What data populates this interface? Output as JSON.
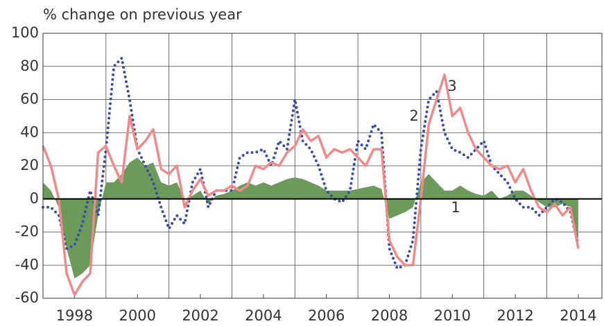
{
  "chart_data": {
    "type": "line",
    "title": "% change on previous year",
    "x": [
      1997,
      1997.25,
      1997.5,
      1997.75,
      1998,
      1998.25,
      1998.5,
      1998.75,
      1999,
      1999.25,
      1999.5,
      1999.75,
      2000,
      2000.25,
      2000.5,
      2000.75,
      2001,
      2001.25,
      2001.5,
      2001.75,
      2002,
      2002.25,
      2002.5,
      2002.75,
      2003,
      2003.25,
      2003.5,
      2003.75,
      2004,
      2004.25,
      2004.5,
      2004.75,
      2005,
      2005.25,
      2005.5,
      2005.75,
      2006,
      2006.25,
      2006.5,
      2006.75,
      2007,
      2007.25,
      2007.5,
      2007.75,
      2008,
      2008.25,
      2008.5,
      2008.75,
      2009,
      2009.25,
      2009.5,
      2009.75,
      2010,
      2010.25,
      2010.5,
      2010.75,
      2011,
      2011.25,
      2011.5,
      2011.75,
      2012,
      2012.25,
      2012.5,
      2012.75,
      2013,
      2013.25,
      2013.5,
      2013.75,
      2014
    ],
    "series": [
      {
        "name": "1",
        "style": "area",
        "color": "#6b9a5a",
        "values": [
          10,
          5,
          -5,
          -30,
          -48,
          -45,
          -40,
          -10,
          10,
          10,
          15,
          22,
          25,
          20,
          22,
          10,
          8,
          10,
          0,
          2,
          5,
          -3,
          2,
          3,
          5,
          8,
          10,
          8,
          10,
          8,
          10,
          12,
          13,
          12,
          10,
          8,
          5,
          5,
          5,
          5,
          6,
          7,
          8,
          6,
          -12,
          -10,
          -8,
          -5,
          10,
          15,
          10,
          5,
          5,
          8,
          5,
          3,
          2,
          5,
          0,
          2,
          5,
          5,
          2,
          -2,
          -5,
          -5,
          -3,
          -5,
          -25
        ]
      },
      {
        "name": "2",
        "style": "dotted",
        "color": "#3a4ea3",
        "values": [
          -5,
          -5,
          -10,
          -30,
          -28,
          -15,
          5,
          -10,
          30,
          80,
          85,
          60,
          30,
          20,
          10,
          -5,
          -18,
          -10,
          -15,
          10,
          18,
          -5,
          5,
          5,
          5,
          25,
          28,
          28,
          30,
          20,
          35,
          30,
          60,
          35,
          30,
          20,
          5,
          0,
          -2,
          5,
          35,
          30,
          45,
          40,
          -30,
          -42,
          -40,
          -25,
          30,
          60,
          65,
          40,
          30,
          28,
          25,
          30,
          35,
          20,
          15,
          10,
          0,
          -5,
          -5,
          -10,
          -5,
          0,
          -2,
          -8,
          -28
        ]
      },
      {
        "name": "3",
        "style": "solid",
        "color": "#f08a8a",
        "values": [
          32,
          20,
          0,
          -45,
          -58,
          -50,
          -45,
          28,
          32,
          20,
          10,
          50,
          30,
          35,
          42,
          18,
          15,
          20,
          -5,
          5,
          12,
          2,
          5,
          5,
          8,
          5,
          8,
          20,
          18,
          22,
          20,
          28,
          32,
          42,
          35,
          38,
          25,
          30,
          28,
          30,
          25,
          20,
          30,
          30,
          -25,
          -35,
          -40,
          -40,
          0,
          45,
          60,
          75,
          50,
          55,
          40,
          30,
          25,
          20,
          18,
          20,
          10,
          18,
          5,
          -5,
          -8,
          -3,
          -10,
          -5,
          -30
        ]
      }
    ],
    "xlim": [
      1997,
      2014.75
    ],
    "xticks": [
      1998,
      2000,
      2002,
      2004,
      2006,
      2008,
      2010,
      2012,
      2014
    ],
    "x_gridlines": [
      1999,
      2001,
      2003,
      2005,
      2007,
      2009,
      2011,
      2013
    ],
    "ylim": [
      -60,
      100
    ],
    "yticks": [
      -60,
      -40,
      -20,
      0,
      20,
      40,
      60,
      80,
      100
    ],
    "grid": true
  }
}
